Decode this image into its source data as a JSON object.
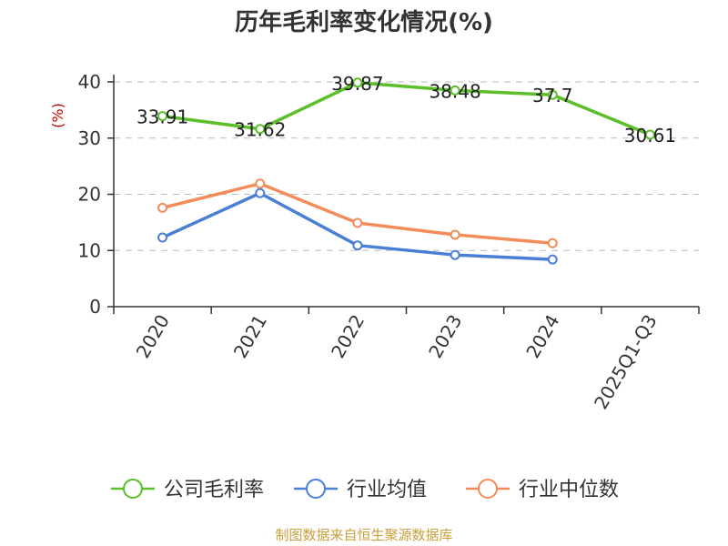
{
  "source_note": "制图数据来自恒生聚源数据库",
  "chart_data": {
    "type": "line",
    "title": "历年毛利率变化情况(%)",
    "ylabel": "(%)",
    "xlabel": "",
    "categories": [
      "2020",
      "2021",
      "2022",
      "2023",
      "2024",
      "2025Q1-Q3"
    ],
    "ylim": [
      0,
      40
    ],
    "yticks": [
      0,
      10,
      20,
      30,
      40
    ],
    "grid": true,
    "legend_position": "bottom",
    "series": [
      {
        "name": "公司毛利率",
        "color": "#5cbf2a",
        "values": [
          33.91,
          31.62,
          39.87,
          38.48,
          37.7,
          30.61
        ],
        "labels": [
          "33.91",
          "31.62",
          "39.87",
          "38.48",
          "37.7",
          "30.61"
        ]
      },
      {
        "name": "行业均值",
        "color": "#4a7fd6",
        "values": [
          12.3,
          20.2,
          10.9,
          9.2,
          8.4,
          null
        ]
      },
      {
        "name": "行业中位数",
        "color": "#f28c5a",
        "values": [
          17.6,
          21.9,
          14.9,
          12.8,
          11.3,
          null
        ]
      }
    ]
  }
}
